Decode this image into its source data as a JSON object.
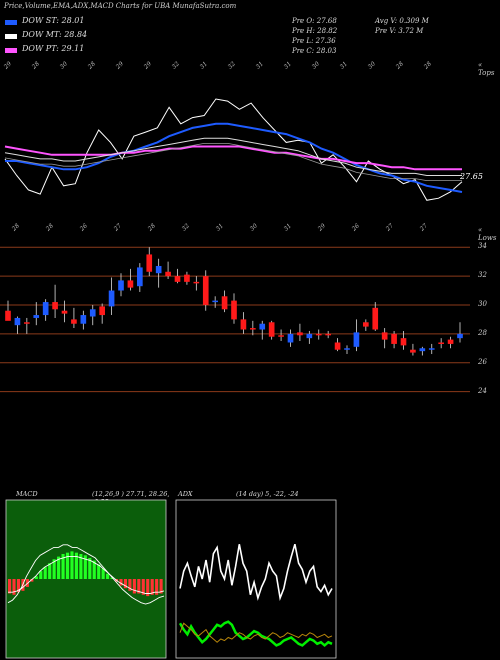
{
  "header": {
    "title": "Price,Volume,EMA,ADX,MACD Charts for UBA MunafaSutra.com"
  },
  "legend": [
    {
      "label": "DOW ST: 28.01",
      "color": "#1e5bff"
    },
    {
      "label": "DOW MT: 28.84",
      "color": "#ffffff"
    },
    {
      "label": "DOW PT: 29.11",
      "color": "#ff55ff"
    }
  ],
  "stats": {
    "prev_open": "Pre   O: 27.68",
    "prev_high": "Pre   H: 28.82",
    "prev_low": "Pre   L: 27.36",
    "prev_close": "Pre   C: 28.03",
    "avg_volume": "Avg V: 0.309 M",
    "prev_volume": "Pre   V: 3.72  M"
  },
  "chart_data": [
    {
      "type": "line",
      "name": "ema-panel",
      "label_top": "« Tops",
      "label_bottom": "« Lows",
      "last_value_label": "27.65",
      "top_ticks": [
        "29",
        "28",
        "30",
        "28",
        "29",
        "29",
        "32",
        "31",
        "32",
        "31",
        "31",
        "30",
        "31",
        "30",
        "28",
        "28"
      ],
      "bottom_ticks": [
        "28",
        "28",
        "26",
        "27",
        "28",
        "32",
        "31",
        "30",
        "31",
        "29",
        "26",
        "27",
        "27"
      ],
      "series": [
        {
          "color": "#ffffff",
          "values": [
            29.6,
            28.8,
            28.1,
            27.9,
            29.2,
            28.3,
            28.4,
            29.9,
            31.0,
            30.4,
            29.6,
            30.7,
            30.9,
            31.1,
            32.1,
            31.3,
            31.6,
            31.7,
            32.5,
            32.4,
            32.0,
            32.3,
            31.6,
            31.0,
            30.4,
            30.5,
            30.4,
            29.4,
            29.8,
            29.2,
            28.5,
            29.5,
            29.1,
            28.8,
            28.4,
            28.6,
            27.6,
            27.7,
            28.0,
            28.5
          ]
        },
        {
          "color": "#1e5bff",
          "values": [
            29.5,
            29.5,
            29.4,
            29.3,
            29.2,
            29.1,
            29.1,
            29.2,
            29.4,
            29.7,
            29.9,
            30.0,
            30.2,
            30.4,
            30.7,
            30.9,
            31.1,
            31.2,
            31.3,
            31.3,
            31.2,
            31.1,
            31.0,
            30.9,
            30.8,
            30.6,
            30.4,
            30.1,
            29.9,
            29.6,
            29.3,
            29.1,
            28.9,
            28.8,
            28.6,
            28.5,
            28.3,
            28.2,
            28.1,
            28.0
          ]
        },
        {
          "color": "#ff55ff",
          "values": [
            30.2,
            30.1,
            30.0,
            29.9,
            29.8,
            29.8,
            29.8,
            29.8,
            29.8,
            29.8,
            29.9,
            29.9,
            30.0,
            30.0,
            30.1,
            30.1,
            30.2,
            30.2,
            30.2,
            30.2,
            30.2,
            30.1,
            30.0,
            29.9,
            29.9,
            29.8,
            29.7,
            29.6,
            29.6,
            29.5,
            29.4,
            29.4,
            29.3,
            29.2,
            29.2,
            29.1,
            29.1,
            29.1,
            29.1,
            29.1
          ]
        },
        {
          "color": "#dddddd",
          "values": [
            29.9,
            29.8,
            29.7,
            29.6,
            29.6,
            29.5,
            29.5,
            29.6,
            29.7,
            29.8,
            29.9,
            30.0,
            30.1,
            30.2,
            30.3,
            30.4,
            30.5,
            30.6,
            30.6,
            30.6,
            30.5,
            30.4,
            30.3,
            30.2,
            30.1,
            30.0,
            29.8,
            29.6,
            29.5,
            29.4,
            29.2,
            29.1,
            29.0,
            28.9,
            28.9,
            28.9,
            28.8,
            28.8,
            28.8,
            28.8
          ]
        }
      ],
      "ylim": [
        26.5,
        34
      ]
    },
    {
      "type": "candlestick",
      "name": "price-panel",
      "y_ticks": [
        34,
        32,
        30,
        28,
        26,
        24
      ],
      "ylim": [
        23,
        34.5
      ],
      "candles": [
        {
          "o": 29.6,
          "h": 30.3,
          "l": 29.0,
          "c": 28.9,
          "up": false
        },
        {
          "o": 28.6,
          "h": 29.2,
          "l": 28.0,
          "c": 29.1,
          "up": true
        },
        {
          "o": 28.7,
          "h": 29.1,
          "l": 28.0,
          "c": 28.8,
          "up": false
        },
        {
          "o": 29.1,
          "h": 30.2,
          "l": 28.6,
          "c": 29.3,
          "up": true
        },
        {
          "o": 29.3,
          "h": 30.4,
          "l": 28.9,
          "c": 30.2,
          "up": true
        },
        {
          "o": 30.2,
          "h": 31.4,
          "l": 29.1,
          "c": 29.7,
          "up": false
        },
        {
          "o": 29.6,
          "h": 30.3,
          "l": 28.8,
          "c": 29.4,
          "up": false
        },
        {
          "o": 29.0,
          "h": 29.8,
          "l": 28.4,
          "c": 28.7,
          "up": false
        },
        {
          "o": 28.7,
          "h": 29.6,
          "l": 28.3,
          "c": 29.3,
          "up": true
        },
        {
          "o": 29.2,
          "h": 30.0,
          "l": 28.6,
          "c": 29.7,
          "up": true
        },
        {
          "o": 29.3,
          "h": 30.1,
          "l": 28.7,
          "c": 29.9,
          "up": false
        },
        {
          "o": 29.9,
          "h": 31.9,
          "l": 29.3,
          "c": 31.0,
          "up": true
        },
        {
          "o": 31.0,
          "h": 32.2,
          "l": 30.6,
          "c": 31.7,
          "up": true
        },
        {
          "o": 31.7,
          "h": 32.5,
          "l": 31.0,
          "c": 31.2,
          "up": false
        },
        {
          "o": 31.3,
          "h": 32.9,
          "l": 30.9,
          "c": 32.6,
          "up": true
        },
        {
          "o": 33.5,
          "h": 34.0,
          "l": 32.0,
          "c": 32.3,
          "up": false
        },
        {
          "o": 32.2,
          "h": 33.2,
          "l": 31.2,
          "c": 32.7,
          "up": true
        },
        {
          "o": 32.3,
          "h": 33.0,
          "l": 31.8,
          "c": 32.0,
          "up": false
        },
        {
          "o": 32.0,
          "h": 32.5,
          "l": 31.5,
          "c": 31.6,
          "up": false
        },
        {
          "o": 32.1,
          "h": 32.3,
          "l": 31.4,
          "c": 31.6,
          "up": false
        },
        {
          "o": 31.6,
          "h": 32.0,
          "l": 31.0,
          "c": 31.5,
          "up": false
        },
        {
          "o": 32.0,
          "h": 32.4,
          "l": 29.6,
          "c": 30.0,
          "up": false
        },
        {
          "o": 30.2,
          "h": 30.6,
          "l": 29.8,
          "c": 30.3,
          "up": true
        },
        {
          "o": 30.6,
          "h": 31.0,
          "l": 29.5,
          "c": 29.7,
          "up": false
        },
        {
          "o": 30.3,
          "h": 30.8,
          "l": 28.7,
          "c": 29.0,
          "up": false
        },
        {
          "o": 29.0,
          "h": 29.5,
          "l": 28.0,
          "c": 28.3,
          "up": false
        },
        {
          "o": 28.4,
          "h": 28.9,
          "l": 27.9,
          "c": 28.3,
          "up": false
        },
        {
          "o": 28.3,
          "h": 28.9,
          "l": 27.6,
          "c": 28.7,
          "up": true
        },
        {
          "o": 28.8,
          "h": 28.9,
          "l": 27.6,
          "c": 27.8,
          "up": false
        },
        {
          "o": 27.8,
          "h": 28.3,
          "l": 27.5,
          "c": 27.9,
          "up": false
        },
        {
          "o": 27.4,
          "h": 28.3,
          "l": 27.1,
          "c": 28.0,
          "up": true
        },
        {
          "o": 28.1,
          "h": 28.7,
          "l": 27.5,
          "c": 27.9,
          "up": false
        },
        {
          "o": 27.7,
          "h": 28.2,
          "l": 27.3,
          "c": 28.0,
          "up": true
        },
        {
          "o": 28.0,
          "h": 28.3,
          "l": 27.6,
          "c": 27.9,
          "up": false
        },
        {
          "o": 28.0,
          "h": 28.2,
          "l": 27.7,
          "c": 27.9,
          "up": false
        },
        {
          "o": 27.4,
          "h": 27.7,
          "l": 26.8,
          "c": 26.9,
          "up": false
        },
        {
          "o": 26.9,
          "h": 27.2,
          "l": 26.6,
          "c": 27.0,
          "up": true
        },
        {
          "o": 27.1,
          "h": 29.0,
          "l": 26.8,
          "c": 28.1,
          "up": true
        },
        {
          "o": 28.5,
          "h": 29.0,
          "l": 28.2,
          "c": 28.8,
          "up": false
        },
        {
          "o": 29.8,
          "h": 30.2,
          "l": 28.2,
          "c": 28.3,
          "up": false
        },
        {
          "o": 28.1,
          "h": 28.4,
          "l": 27.0,
          "c": 27.6,
          "up": false
        },
        {
          "o": 28.0,
          "h": 28.2,
          "l": 27.0,
          "c": 27.3,
          "up": false
        },
        {
          "o": 27.7,
          "h": 28.2,
          "l": 26.9,
          "c": 27.2,
          "up": false
        },
        {
          "o": 26.9,
          "h": 27.3,
          "l": 26.5,
          "c": 26.7,
          "up": false
        },
        {
          "o": 26.8,
          "h": 27.1,
          "l": 26.5,
          "c": 27.0,
          "up": true
        },
        {
          "o": 26.9,
          "h": 27.3,
          "l": 26.6,
          "c": 27.0,
          "up": true
        },
        {
          "o": 27.3,
          "h": 27.7,
          "l": 27.0,
          "c": 27.4,
          "up": false
        },
        {
          "o": 27.3,
          "h": 27.8,
          "l": 27.0,
          "c": 27.6,
          "up": false
        },
        {
          "o": 27.7,
          "h": 28.8,
          "l": 27.4,
          "c": 28.0,
          "up": true
        }
      ]
    },
    {
      "type": "bar",
      "name": "macd-panel",
      "title_left": "MACD",
      "title_right": "(12,26,9 ) 27.71, 28.26, -0.55",
      "values": [
        -0.55,
        -0.6,
        -0.5,
        -0.45,
        -0.3,
        -0.1,
        0.1,
        0.3,
        0.45,
        0.6,
        0.75,
        0.85,
        0.95,
        1.0,
        1.05,
        1.0,
        0.95,
        0.9,
        0.8,
        0.7,
        0.55,
        0.4,
        0.2,
        0.05,
        -0.1,
        -0.25,
        -0.35,
        -0.45,
        -0.55,
        -0.55,
        -0.6,
        -0.65,
        -0.6,
        -0.6,
        -0.55
      ],
      "line_a": [
        -0.9,
        -0.8,
        -0.6,
        -0.3,
        0.1,
        0.4,
        0.7,
        0.9,
        1.0,
        1.1,
        1.2,
        1.2,
        1.3,
        1.3,
        1.2,
        1.2,
        1.1,
        1.0,
        0.9,
        0.8,
        0.6,
        0.4,
        0.2,
        0.0,
        -0.2,
        -0.4,
        -0.55,
        -0.7,
        -0.8,
        -0.9,
        -0.95,
        -0.9,
        -0.8,
        -0.7,
        -0.65
      ],
      "line_b": [
        -0.5,
        -0.5,
        -0.45,
        -0.35,
        -0.2,
        -0.05,
        0.1,
        0.3,
        0.45,
        0.55,
        0.65,
        0.75,
        0.8,
        0.85,
        0.85,
        0.85,
        0.8,
        0.75,
        0.7,
        0.6,
        0.5,
        0.35,
        0.2,
        0.05,
        -0.1,
        -0.2,
        -0.3,
        -0.4,
        -0.45,
        -0.5,
        -0.55,
        -0.55,
        -0.5,
        -0.5,
        -0.45
      ],
      "ylim": [
        -3,
        3
      ]
    },
    {
      "type": "line",
      "name": "adx-panel",
      "title_left": "ADX",
      "title_right": "(14 day) 5, -22, -24",
      "series": [
        {
          "color": "#ffffff",
          "values": [
            44,
            55,
            60,
            52,
            45,
            58,
            50,
            62,
            48,
            66,
            70,
            55,
            50,
            62,
            46,
            58,
            72,
            60,
            55,
            40,
            48,
            38,
            45,
            50,
            60,
            55,
            52,
            38,
            44,
            55,
            64,
            72,
            60,
            56,
            48,
            55,
            58,
            45,
            42,
            46,
            40,
            44
          ]
        },
        {
          "color": "#00ee00",
          "values": [
            22,
            18,
            15,
            20,
            16,
            13,
            10,
            12,
            15,
            18,
            21,
            20,
            22,
            23,
            21,
            16,
            14,
            12,
            13,
            15,
            17,
            16,
            14,
            13,
            12,
            10,
            8,
            9,
            11,
            12,
            13,
            11,
            9,
            8,
            10,
            12,
            11,
            9,
            10,
            8,
            10,
            9
          ]
        },
        {
          "color": "#b8860b",
          "values": [
            16,
            22,
            20,
            18,
            15,
            14,
            16,
            18,
            14,
            12,
            10,
            12,
            11,
            13,
            12,
            14,
            16,
            15,
            13,
            12,
            14,
            15,
            13,
            12,
            14,
            16,
            15,
            13,
            14,
            16,
            15,
            14,
            13,
            15,
            14,
            16,
            15,
            13,
            14,
            15,
            13,
            14
          ]
        }
      ],
      "ylim": [
        0,
        100
      ]
    }
  ]
}
